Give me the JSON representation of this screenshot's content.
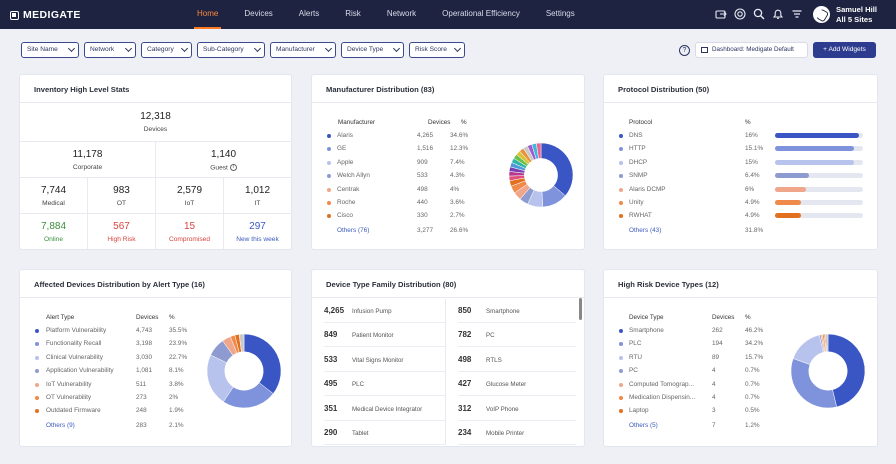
{
  "app": {
    "brand": "MEDIGATE"
  },
  "nav": [
    {
      "label": "Home",
      "active": true
    },
    {
      "label": "Devices"
    },
    {
      "label": "Alerts"
    },
    {
      "label": "Risk"
    },
    {
      "label": "Network"
    },
    {
      "label": "Operational Efficiency"
    },
    {
      "label": "Settings"
    }
  ],
  "top_icons": [
    "share-icon",
    "shield-icon",
    "search-icon",
    "bell-icon",
    "filter-icon"
  ],
  "user": {
    "name": "Samuel Hill",
    "sites": "All 5 Sites"
  },
  "filters": [
    "Site Name",
    "Network",
    "Category",
    "Sub-Category",
    "Manufacturer",
    "Device Type",
    "Risk Score"
  ],
  "toolbar": {
    "help": "?",
    "dashboard": "Dashboard: Medigate Default",
    "add_widgets": "+ Add Widgets"
  },
  "inventory": {
    "title": "Inventory High Level Stats",
    "total": {
      "value": "12,318",
      "label": "Devices"
    },
    "corporate": {
      "value": "11,178",
      "label": "Corporate"
    },
    "guest": {
      "value": "1,140",
      "label": "Guest"
    },
    "medical": {
      "value": "7,744",
      "label": "Medical"
    },
    "ot": {
      "value": "983",
      "label": "OT"
    },
    "iot": {
      "value": "2,579",
      "label": "IoT"
    },
    "it": {
      "value": "1,012",
      "label": "IT"
    },
    "online": {
      "value": "7,884",
      "label": "Online",
      "color": "#3b8f3e"
    },
    "high_risk": {
      "value": "567",
      "label": "High Risk",
      "color": "#d9443d"
    },
    "compromised": {
      "value": "15",
      "label": "Compromised",
      "color": "#d9443d"
    },
    "new_week": {
      "value": "297",
      "label": "New this week",
      "color": "#3b5bbd"
    }
  },
  "manufacturer": {
    "title": "Manufacturer Distribution (83)",
    "headers": [
      "Manufacturer",
      "Devices",
      "%"
    ],
    "rows": [
      {
        "name": "Alaris",
        "devices": "4,265",
        "pct": "34.6%",
        "color": "#3a56c5"
      },
      {
        "name": "GE",
        "devices": "1,516",
        "pct": "12.3%",
        "color": "#7f93dc"
      },
      {
        "name": "Apple",
        "devices": "909",
        "pct": "7.4%",
        "color": "#b7c3ec"
      },
      {
        "name": "Welch Allyn",
        "devices": "533",
        "pct": "4.3%",
        "color": "#8e9bd0"
      },
      {
        "name": "Centrak",
        "devices": "498",
        "pct": "4%",
        "color": "#f0a68a"
      },
      {
        "name": "Roche",
        "devices": "440",
        "pct": "3.6%",
        "color": "#f08a4b"
      },
      {
        "name": "Cisco",
        "devices": "330",
        "pct": "2.7%",
        "color": "#e2701f"
      }
    ],
    "others": {
      "name": "Others (76)",
      "devices": "3,277",
      "pct": "26.6%"
    }
  },
  "protocol": {
    "title": "Protocol Distribution (50)",
    "headers": [
      "Protocol",
      "%"
    ],
    "rows": [
      {
        "name": "DNS",
        "pct": "16%",
        "value": 16,
        "color": "#3a56c5"
      },
      {
        "name": "HTTP",
        "pct": "15.1%",
        "value": 15.1,
        "color": "#7f93dc"
      },
      {
        "name": "DHCP",
        "pct": "15%",
        "value": 15,
        "color": "#b7c3ec"
      },
      {
        "name": "SNMP",
        "pct": "6.4%",
        "value": 6.4,
        "color": "#8e9bd0"
      },
      {
        "name": "Alaris DCMP",
        "pct": "6%",
        "value": 6,
        "color": "#f0a68a"
      },
      {
        "name": "Unity",
        "pct": "4.9%",
        "value": 4.9,
        "color": "#f08a4b"
      },
      {
        "name": "RWHAT",
        "pct": "4.9%",
        "value": 4.9,
        "color": "#e2701f"
      }
    ],
    "others": {
      "name": "Others (43)",
      "pct": "31.8%"
    }
  },
  "alerts": {
    "title": "Affected Devices Distribution by Alert Type (16)",
    "headers": [
      "Alert Type",
      "Devices",
      "%"
    ],
    "rows": [
      {
        "name": "Platform Vulnerability",
        "devices": "4,743",
        "pct": "35.5%",
        "color": "#3a56c5"
      },
      {
        "name": "Functionality Recall",
        "devices": "3,198",
        "pct": "23.9%",
        "color": "#7f93dc"
      },
      {
        "name": "Clinical Vulnerability",
        "devices": "3,030",
        "pct": "22.7%",
        "color": "#b7c3ec"
      },
      {
        "name": "Application Vulnerability",
        "devices": "1,081",
        "pct": "8.1%",
        "color": "#8e9bd0"
      },
      {
        "name": "IoT Vulnerability",
        "devices": "511",
        "pct": "3.8%",
        "color": "#f0a68a"
      },
      {
        "name": "OT Vulnerability",
        "devices": "273",
        "pct": "2%",
        "color": "#f08a4b"
      },
      {
        "name": "Outdated Firmware",
        "devices": "248",
        "pct": "1.9%",
        "color": "#e2701f"
      }
    ],
    "others": {
      "name": "Others (9)",
      "devices": "283",
      "pct": "2.1%"
    }
  },
  "device_family": {
    "title": "Device Type Family Distribution (80)",
    "items": [
      {
        "count": "4,265",
        "name": "Infusion Pump"
      },
      {
        "count": "850",
        "name": "Smartphone"
      },
      {
        "count": "849",
        "name": "Patient Monitor"
      },
      {
        "count": "782",
        "name": "PC"
      },
      {
        "count": "533",
        "name": "Vital Signs Monitor"
      },
      {
        "count": "498",
        "name": "RTLS"
      },
      {
        "count": "495",
        "name": "PLC"
      },
      {
        "count": "427",
        "name": "Glucose Meter"
      },
      {
        "count": "351",
        "name": "Medical Device Integrator"
      },
      {
        "count": "312",
        "name": "VoIP Phone"
      },
      {
        "count": "290",
        "name": "Tablet"
      },
      {
        "count": "234",
        "name": "Mobile Printer"
      }
    ]
  },
  "high_risk": {
    "title": "High Risk Device Types (12)",
    "headers": [
      "Device Type",
      "Devices",
      "%"
    ],
    "rows": [
      {
        "name": "Smartphone",
        "devices": "262",
        "pct": "46.2%",
        "color": "#3a56c5"
      },
      {
        "name": "PLC",
        "devices": "194",
        "pct": "34.2%",
        "color": "#7f93dc"
      },
      {
        "name": "RTU",
        "devices": "89",
        "pct": "15.7%",
        "color": "#b7c3ec"
      },
      {
        "name": "PC",
        "devices": "4",
        "pct": "0.7%",
        "color": "#8e9bd0"
      },
      {
        "name": "Computed Tomograp...",
        "devices": "4",
        "pct": "0.7%",
        "color": "#f0a68a"
      },
      {
        "name": "Medication Dispensin...",
        "devices": "4",
        "pct": "0.7%",
        "color": "#f08a4b"
      },
      {
        "name": "Laptop",
        "devices": "3",
        "pct": "0.5%",
        "color": "#e2701f"
      }
    ],
    "others": {
      "name": "Others (5)",
      "devices": "7",
      "pct": "1.2%"
    }
  }
}
